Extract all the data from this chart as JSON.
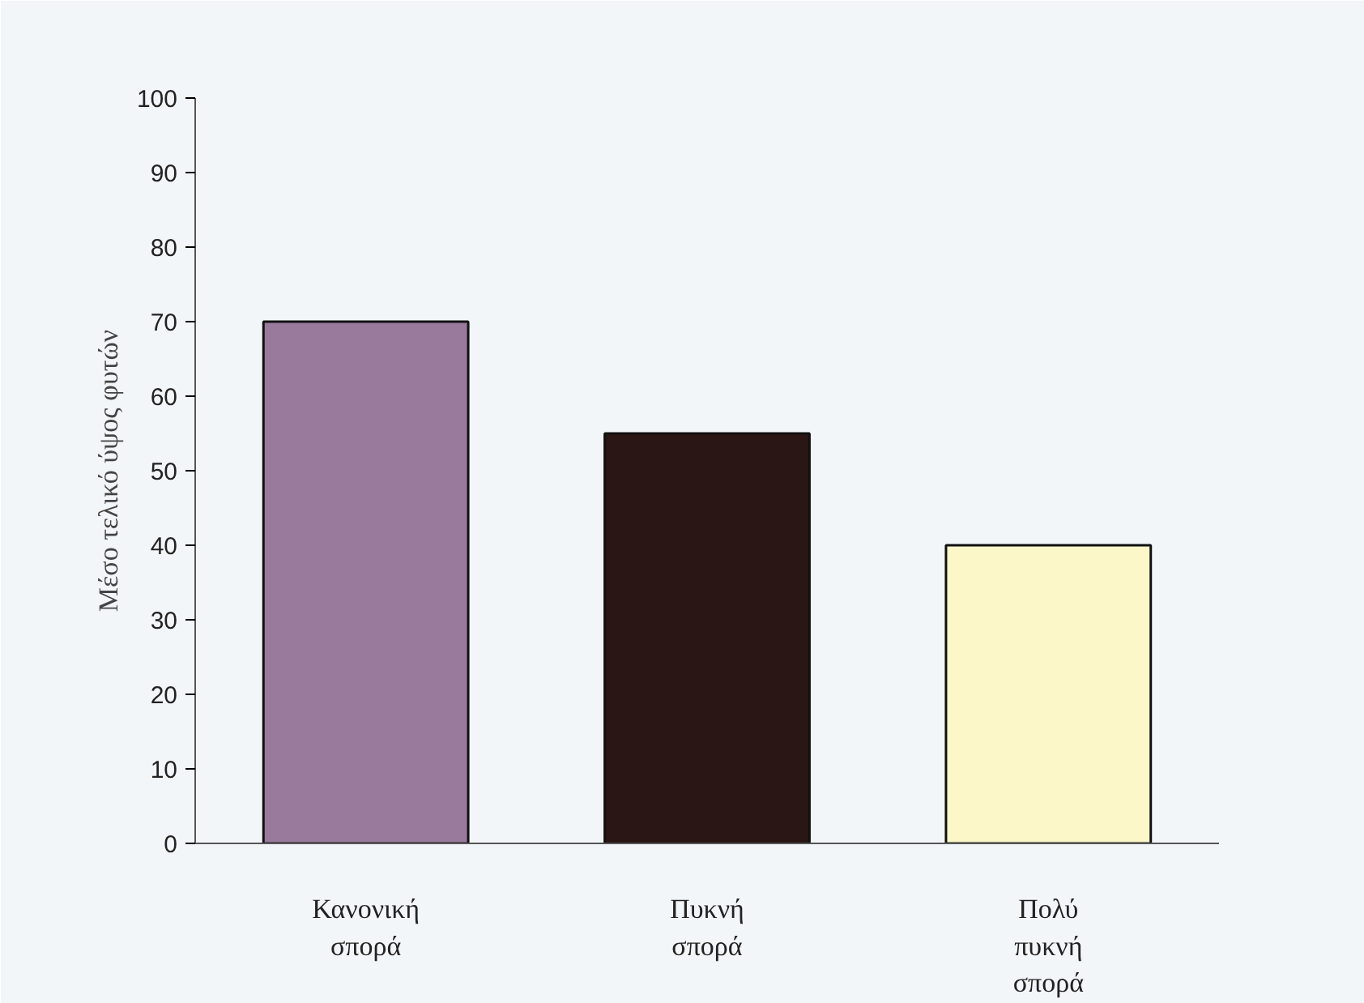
{
  "chart_data": {
    "type": "bar",
    "ylabel": "Μέσο τελικό ύψος φυτών",
    "categories": [
      "Κανονική σπορά",
      "Πυκνή σπορά",
      "Πολύ πυκνή σπορά"
    ],
    "values": [
      70,
      55,
      40
    ],
    "colors": [
      "#9a7a9c",
      "#2a1614",
      "#fbf7c8"
    ],
    "ylim": [
      0,
      100
    ],
    "yticks": [
      0,
      10,
      20,
      30,
      40,
      50,
      60,
      70,
      80,
      90,
      100
    ],
    "grid": false
  }
}
